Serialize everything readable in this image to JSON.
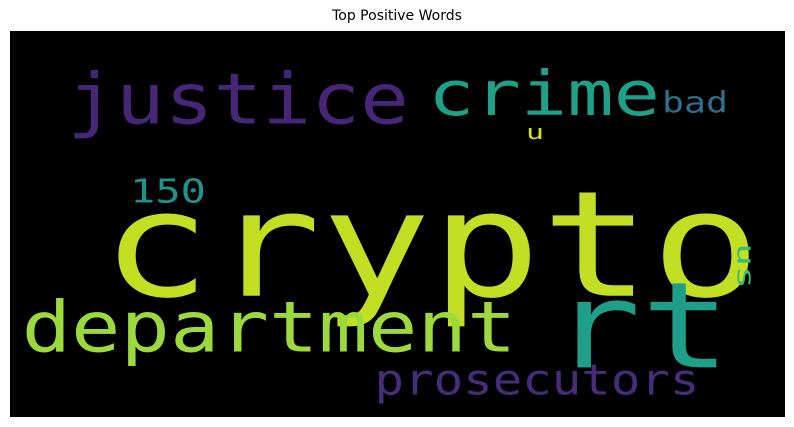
{
  "chart_data": {
    "type": "wordcloud",
    "title": "Top Positive Words",
    "background": "#000000",
    "colormap": "viridis",
    "words": [
      {
        "text": "crypto",
        "color": "#c2df23"
      },
      {
        "text": "rt",
        "color": "#1f9e89"
      },
      {
        "text": "justice",
        "color": "#482677"
      },
      {
        "text": "crime",
        "color": "#1fa187"
      },
      {
        "text": "department",
        "color": "#9bd93c"
      },
      {
        "text": "prosecutors",
        "color": "#472c7a"
      },
      {
        "text": "bad",
        "color": "#2d6f8e"
      },
      {
        "text": "us",
        "color": "#3dbc74"
      },
      {
        "text": "150",
        "color": "#20928c"
      },
      {
        "text": "u",
        "color": "#d8e219"
      }
    ]
  }
}
